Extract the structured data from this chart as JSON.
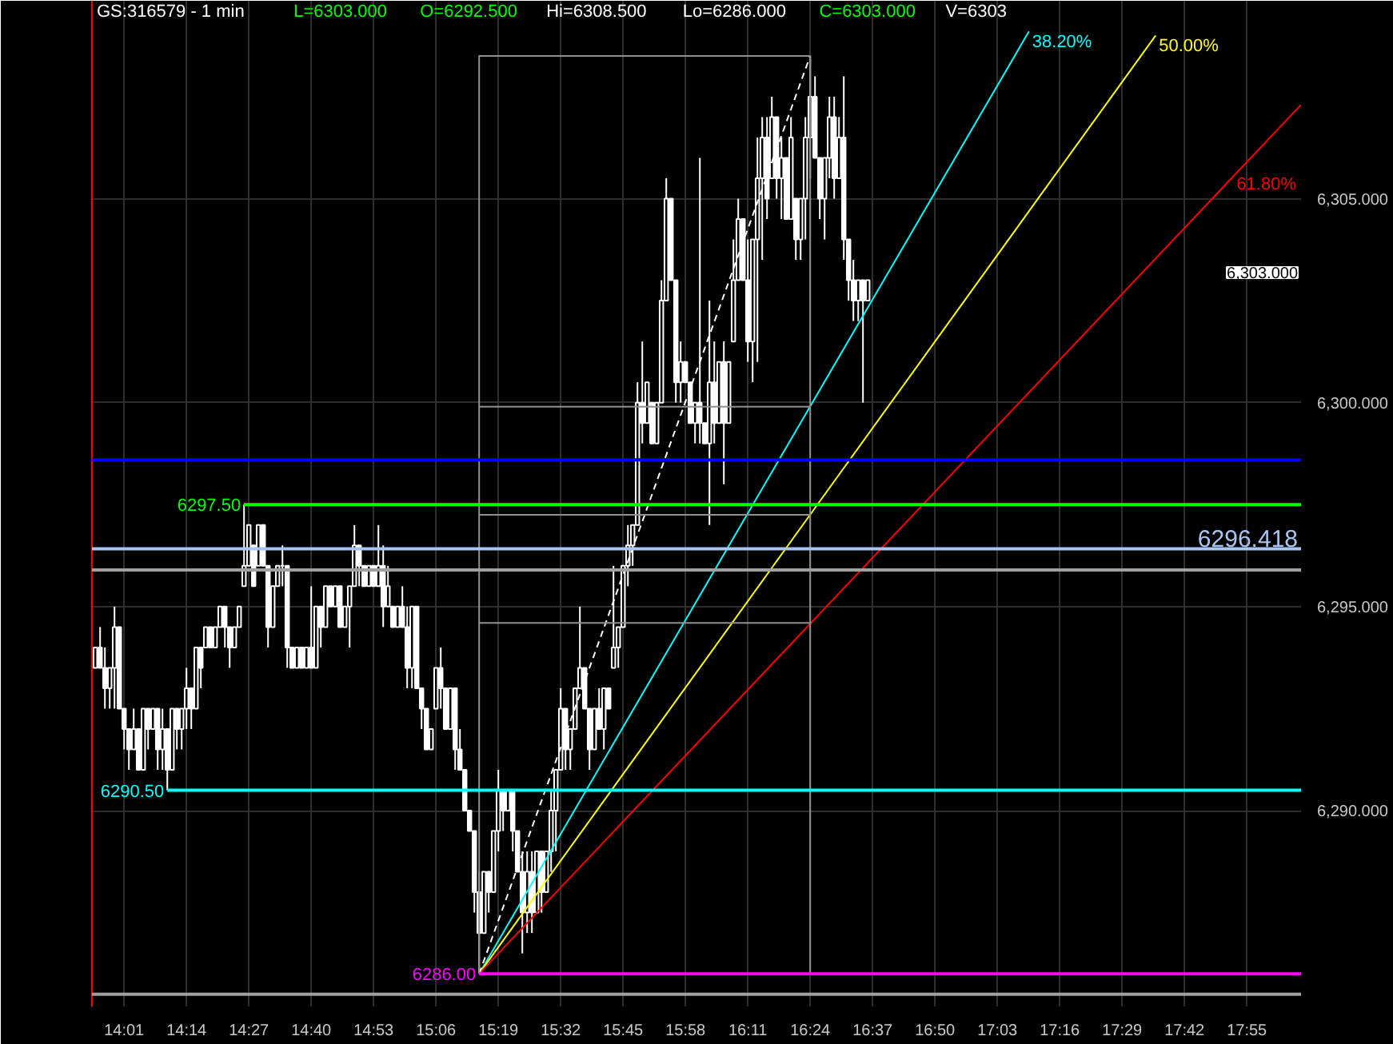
{
  "chart_data": {
    "type": "candlestick",
    "title": "GS:316579 - 1 min",
    "annotations": [
      "L=6303.000",
      "O=6292.500",
      "Hi=6308.500",
      "Lo=6286.000",
      "C=6303.000",
      "V=6303",
      "6,303.000"
    ],
    "color": "#ffffff",
    "x": [
      13.9167,
      13.9333,
      13.95,
      13.9667,
      13.9833,
      14,
      14.0167,
      14.0333,
      14.05,
      14.0667,
      14.0833,
      14.1,
      14.1167,
      14.1333,
      14.15,
      14.1667,
      14.1833,
      14.2,
      14.2167,
      14.2333,
      14.25,
      14.2667,
      14.2833,
      14.3,
      14.3167,
      14.3333,
      14.35,
      14.3667,
      14.3833,
      14.4,
      14.4167,
      14.4333,
      14.45,
      14.4667,
      14.4833,
      14.5,
      14.5167,
      14.5333,
      14.55,
      14.5667,
      14.5833,
      14.6,
      14.6167,
      14.6333,
      14.65,
      14.6667,
      14.6833,
      14.7,
      14.7167,
      14.7333,
      14.75,
      14.7667,
      14.7833,
      14.8,
      14.8167,
      14.8333,
      14.85,
      14.8667,
      14.8833,
      14.9,
      14.9167,
      14.9333,
      14.95,
      14.9667,
      14.9833,
      15,
      15.0167,
      15.0333,
      15.05,
      15.0667,
      15.0833,
      15.1,
      15.1167,
      15.1333,
      15.15,
      15.1667,
      15.1833,
      15.2,
      15.2167,
      15.2333,
      15.25,
      15.2667,
      15.2833,
      15.3,
      15.3167,
      15.3333,
      15.35,
      15.3667,
      15.3833,
      15.4,
      15.4167,
      15.4333,
      15.45,
      15.4667,
      15.4833,
      15.5,
      15.5167,
      15.5333,
      15.55,
      15.5667,
      15.5833,
      15.6,
      15.6167,
      15.6333,
      15.65,
      15.6667,
      15.6833,
      15.7,
      15.7167,
      15.7333,
      15.75,
      15.7667,
      15.7833,
      15.8,
      15.8167,
      15.8333,
      15.85,
      15.8667,
      15.8833,
      15.9,
      15.9167,
      15.9333,
      15.95,
      15.9667,
      15.9833,
      16,
      16.0167,
      16.0333,
      16.05,
      16.0667,
      16.0833,
      16.1,
      16.1167,
      16.1333,
      16.15,
      16.1667,
      16.1833,
      16.2,
      16.2167,
      16.2333,
      16.25,
      16.2667,
      16.2833,
      16.3,
      16.3167,
      16.3333,
      16.35,
      16.3667,
      16.3833,
      16.4,
      16.4167,
      16.4333,
      16.45,
      16.4667,
      16.4833,
      16.5,
      16.5167,
      16.5333,
      16.55,
      16.5667,
      16.5833,
      16.6
    ],
    "ohlc": [
      [
        6293.5,
        6294,
        6293.5,
        6294
      ],
      [
        6294,
        6294.5,
        6293.5,
        6293.5
      ],
      [
        6293.5,
        6294,
        6292.5,
        6293
      ],
      [
        6293,
        6293.5,
        6292.5,
        6293.5
      ],
      [
        6293.5,
        6295,
        6292.5,
        6294.5
      ],
      [
        6294.5,
        6294.5,
        6292.5,
        6292.5
      ],
      [
        6292.5,
        6292.5,
        6291.5,
        6292
      ],
      [
        6292,
        6292,
        6291,
        6291.5
      ],
      [
        6291.5,
        6292.5,
        6291.5,
        6292
      ],
      [
        6292,
        6292,
        6291,
        6291
      ],
      [
        6291,
        6292.5,
        6291,
        6292.5
      ],
      [
        6292.5,
        6292.5,
        6291.5,
        6292
      ],
      [
        6292,
        6292.5,
        6292,
        6292.5
      ],
      [
        6292.5,
        6292.5,
        6291,
        6291.5
      ],
      [
        6291.5,
        6292.5,
        6291,
        6292
      ],
      [
        6292,
        6292,
        6290.5,
        6291
      ],
      [
        6291,
        6292.5,
        6291,
        6292.5
      ],
      [
        6292.5,
        6292.5,
        6291.5,
        6292
      ],
      [
        6292,
        6292.5,
        6291.5,
        6292.5
      ],
      [
        6292.5,
        6293.5,
        6292,
        6293
      ],
      [
        6293,
        6293,
        6292,
        6292.5
      ],
      [
        6292.5,
        6294,
        6292.5,
        6294
      ],
      [
        6294,
        6294,
        6293,
        6293.5
      ],
      [
        6294,
        6294.5,
        6294,
        6294.5
      ],
      [
        6294.5,
        6294.5,
        6294,
        6294
      ],
      [
        6294,
        6294.5,
        6294,
        6294.5
      ],
      [
        6294.5,
        6295,
        6294.5,
        6295
      ],
      [
        6295,
        6295,
        6294,
        6294.5
      ],
      [
        6294.5,
        6294.5,
        6293.5,
        6294
      ],
      [
        6294,
        6294.5,
        6294,
        6294.5
      ],
      [
        6294.5,
        6295,
        6294.5,
        6295
      ],
      [
        6295.5,
        6297.5,
        6295.5,
        6296
      ],
      [
        6296,
        6297,
        6296,
        6297
      ],
      [
        6296.5,
        6296.5,
        6295.5,
        6295.5
      ],
      [
        6296,
        6297,
        6296,
        6297
      ],
      [
        6297,
        6297,
        6296,
        6296
      ],
      [
        6296,
        6296,
        6294,
        6294.5
      ],
      [
        6294.5,
        6295.5,
        6294.5,
        6295.5
      ],
      [
        6295.5,
        6296,
        6295.5,
        6296
      ],
      [
        6296,
        6296.5,
        6295.5,
        6296
      ],
      [
        6296,
        6296,
        6293.5,
        6294
      ],
      [
        6294,
        6294,
        6293.5,
        6293.5
      ],
      [
        6293.5,
        6294,
        6293.5,
        6294
      ],
      [
        6294,
        6294,
        6293.5,
        6293.5
      ],
      [
        6293.5,
        6294,
        6293.5,
        6294
      ],
      [
        6294,
        6295.5,
        6293.5,
        6293.5
      ],
      [
        6293.5,
        6295,
        6293.5,
        6295
      ],
      [
        6295,
        6295,
        6294,
        6294.5
      ],
      [
        6294.5,
        6295.5,
        6294.5,
        6295.5
      ],
      [
        6295.5,
        6295.5,
        6295,
        6295
      ],
      [
        6295,
        6295.5,
        6295,
        6295.5
      ],
      [
        6295.5,
        6295.5,
        6294.5,
        6294.5
      ],
      [
        6294.5,
        6295,
        6294.5,
        6295
      ],
      [
        6295,
        6295.5,
        6294,
        6295.5
      ],
      [
        6295.5,
        6297,
        6295.5,
        6296.5
      ],
      [
        6296.5,
        6296.5,
        6295.5,
        6296
      ],
      [
        6296,
        6296,
        6295.5,
        6295.5
      ],
      [
        6295.5,
        6296,
        6295.5,
        6296
      ],
      [
        6296,
        6296,
        6295.5,
        6295.5
      ],
      [
        6295.5,
        6297,
        6295.5,
        6296
      ],
      [
        6296,
        6296.5,
        6294.5,
        6295
      ],
      [
        6295,
        6296,
        6295,
        6295.5
      ],
      [
        6295,
        6295,
        6294.5,
        6294.5
      ],
      [
        6294.5,
        6295,
        6294.5,
        6295
      ],
      [
        6295,
        6295.5,
        6294.5,
        6294.5
      ],
      [
        6294.5,
        6295,
        6293,
        6293.5
      ],
      [
        6293.5,
        6295,
        6293,
        6295
      ],
      [
        6295,
        6295,
        6293,
        6293
      ],
      [
        6293,
        6293,
        6292,
        6292.5
      ],
      [
        6292.5,
        6292.5,
        6291.5,
        6291.5
      ],
      [
        6291.5,
        6292,
        6291.5,
        6292
      ],
      [
        6292.5,
        6293.5,
        6292.5,
        6293.5
      ],
      [
        6293.5,
        6294,
        6292.5,
        6293
      ],
      [
        6293,
        6293,
        6292,
        6292
      ],
      [
        6292,
        6293,
        6292,
        6293
      ],
      [
        6293,
        6293,
        6291,
        6291.5
      ],
      [
        6291.5,
        6292,
        6291,
        6291
      ],
      [
        6291,
        6291,
        6290,
        6290
      ],
      [
        6290,
        6290,
        6289.5,
        6289.5
      ],
      [
        6289.5,
        6289.5,
        6287.5,
        6288
      ],
      [
        6288,
        6288.5,
        6286,
        6287
      ],
      [
        6287,
        6288.5,
        6287,
        6288.5
      ],
      [
        6288.5,
        6288.5,
        6287.5,
        6288
      ],
      [
        6288,
        6289.5,
        6288,
        6289.5
      ],
      [
        6289.5,
        6291,
        6289,
        6290.5
      ],
      [
        6290.5,
        6290.5,
        6289.5,
        6290
      ],
      [
        6290,
        6290.5,
        6290,
        6290.5
      ],
      [
        6290.5,
        6290.5,
        6289,
        6289.5
      ],
      [
        6289.5,
        6289.5,
        6288.5,
        6288.5
      ],
      [
        6288.5,
        6289,
        6286.5,
        6287.5
      ],
      [
        6287.5,
        6289,
        6287,
        6288.5
      ],
      [
        6288.5,
        6289,
        6287,
        6287.5
      ],
      [
        6287.5,
        6289,
        6287.5,
        6289
      ],
      [
        6289,
        6289,
        6287.5,
        6288
      ],
      [
        6288,
        6289,
        6288,
        6289
      ],
      [
        6289,
        6290.5,
        6288.5,
        6290
      ],
      [
        6290,
        6291,
        6289,
        6291
      ],
      [
        6291,
        6293,
        6291,
        6292.5
      ],
      [
        6292.5,
        6292.5,
        6291,
        6291.5
      ],
      [
        6291.5,
        6292,
        6291,
        6292
      ],
      [
        6292,
        6293,
        6292,
        6293
      ],
      [
        6293,
        6295,
        6293,
        6293.5
      ],
      [
        6293.5,
        6293.5,
        6292.5,
        6292.5
      ],
      [
        6292.5,
        6292.5,
        6291,
        6291.5
      ],
      [
        6291.5,
        6292.5,
        6291.5,
        6292.5
      ],
      [
        6292.5,
        6293,
        6292,
        6292
      ],
      [
        6292,
        6293,
        6291.5,
        6293
      ],
      [
        6293,
        6293,
        6292.5,
        6292.5
      ],
      [
        6293.5,
        6296,
        6293.5,
        6294
      ],
      [
        6294,
        6294.5,
        6293.5,
        6294.5
      ],
      [
        6294.5,
        6296,
        6294.5,
        6296
      ],
      [
        6296,
        6297,
        6295.5,
        6296.5
      ],
      [
        6296.5,
        6297,
        6296,
        6297
      ],
      [
        6297,
        6300.5,
        6297,
        6300
      ],
      [
        6300,
        6301.5,
        6299,
        6299.5
      ],
      [
        6299.5,
        6300.5,
        6299.5,
        6300.5
      ],
      [
        6300,
        6300,
        6299,
        6299
      ],
      [
        6299,
        6300,
        6299,
        6300
      ],
      [
        6300,
        6303,
        6300,
        6302.5
      ],
      [
        6302.5,
        6305.5,
        6302.5,
        6305
      ],
      [
        6305,
        6305,
        6303,
        6303
      ],
      [
        6303,
        6303,
        6300,
        6300.5
      ],
      [
        6300.5,
        6301.5,
        6300,
        6301
      ],
      [
        6301,
        6301,
        6300.5,
        6300.5
      ],
      [
        6300.5,
        6300.5,
        6299.5,
        6299.5
      ],
      [
        6299.5,
        6300,
        6299,
        6300
      ],
      [
        6300,
        6306,
        6299,
        6299.5
      ],
      [
        6299.5,
        6299.5,
        6299,
        6299
      ],
      [
        6299,
        6302.5,
        6297,
        6300.5
      ],
      [
        6300.5,
        6301.5,
        6299,
        6299.5
      ],
      [
        6299.5,
        6301,
        6299.5,
        6301
      ],
      [
        6301,
        6301.5,
        6298,
        6299.5
      ],
      [
        6299.5,
        6301,
        6299.5,
        6301
      ],
      [
        6301.5,
        6304,
        6301.5,
        6303
      ],
      [
        6303,
        6305,
        6303,
        6304.5
      ],
      [
        6304.5,
        6304.5,
        6303,
        6303
      ],
      [
        6303,
        6304,
        6301,
        6301.5
      ],
      [
        6301.5,
        6304,
        6300.5,
        6304
      ],
      [
        6304,
        6306.5,
        6301,
        6305.5
      ],
      [
        6305.5,
        6307,
        6303.5,
        6306.5
      ],
      [
        6306.5,
        6307,
        6304.5,
        6305
      ],
      [
        6305.5,
        6307.5,
        6305.5,
        6307
      ],
      [
        6307,
        6307,
        6305,
        6305.5
      ],
      [
        6305.5,
        6306.5,
        6304.5,
        6306
      ],
      [
        6306,
        6306,
        6304.5,
        6304.5
      ],
      [
        6304.5,
        6307,
        6304.5,
        6306.5
      ],
      [
        6305,
        6305,
        6303.5,
        6304
      ],
      [
        6304,
        6305,
        6303.5,
        6305
      ],
      [
        6305,
        6307,
        6304,
        6306.5
      ],
      [
        6306.5,
        6308.5,
        6305.5,
        6307.5
      ],
      [
        6307.5,
        6308,
        6306,
        6306
      ],
      [
        6306,
        6306,
        6304.5,
        6305
      ],
      [
        6305,
        6306,
        6304,
        6306
      ],
      [
        6306,
        6307.5,
        6305.5,
        6307
      ],
      [
        6307,
        6307.5,
        6305,
        6305.5
      ],
      [
        6305.5,
        6307,
        6305.5,
        6306.5
      ],
      [
        6306.5,
        6308,
        6303.5,
        6304
      ],
      [
        6304,
        6304,
        6302.5,
        6303
      ],
      [
        6303,
        6303.5,
        6302,
        6302.5
      ],
      [
        6302.5,
        6303,
        6302,
        6303
      ],
      [
        6303,
        6303,
        6300,
        6302.5
      ],
      [
        6302.5,
        6303,
        6302.5,
        6303
      ]
    ],
    "series": [
      {
        "type": "line",
        "name": "38.20%",
        "color": "#00ffff",
        "x": [
          15.25,
          17.16
        ],
        "values": [
          6286,
          6309.1
        ]
      },
      {
        "type": "line",
        "name": "50.00%",
        "color": "#ffff00",
        "x": [
          15.25,
          17.6
        ],
        "values": [
          6286,
          6309.0
        ]
      },
      {
        "type": "line",
        "name": "61.80%",
        "color": "#ff0000",
        "x": [
          15.25,
          18.105
        ],
        "values": [
          6286,
          6307.3
        ]
      },
      {
        "type": "line",
        "color": "#ffffff",
        "line_style": "dashed",
        "x": [
          15.25,
          16.4
        ],
        "values": [
          6286,
          6308.5
        ]
      },
      {
        "type": "line",
        "color": "#909090",
        "x": [
          15.25,
          15.25,
          16.4,
          16.4
        ],
        "values": [
          6286,
          6308.5,
          6308.5,
          6286
        ]
      },
      {
        "type": "line",
        "color": "#909090",
        "x": [
          15.25,
          16.4
        ],
        "values": [
          6299.9,
          6299.9
        ]
      },
      {
        "type": "line",
        "color": "#909090",
        "x": [
          15.25,
          16.4
        ],
        "values": [
          6297.25,
          6297.25
        ]
      },
      {
        "type": "line",
        "color": "#909090",
        "x": [
          15.25,
          16.4
        ],
        "values": [
          6294.6,
          6294.6
        ]
      },
      {
        "type": "line",
        "name": "6297.50",
        "color": "#00ff00",
        "x": [
          14.4333,
          18.105
        ],
        "values": [
          6297.5,
          6297.5
        ]
      },
      {
        "type": "line",
        "name": "6290.50",
        "color": "#00ffff",
        "x": [
          14.1667,
          18.105
        ],
        "values": [
          6290.5,
          6290.5
        ]
      },
      {
        "type": "line",
        "name": "6286.00",
        "color": "#ff00ff",
        "x": [
          15.25,
          18.105
        ],
        "values": [
          6286,
          6286
        ]
      }
    ],
    "ref_lines": [
      {
        "axis": "y",
        "value": 6298.6,
        "color": "#0000ff"
      },
      {
        "axis": "y",
        "value": 6296.418,
        "label": "6296.418",
        "color": "#a8c4f0"
      },
      {
        "axis": "y",
        "value": 6295.9,
        "color": "#a0a0a0"
      },
      {
        "axis": "y",
        "value": 6285.5,
        "color": "#a0a0a0"
      }
    ],
    "xlim": [
      13.905,
      18.105
    ],
    "ylim": [
      6285.2,
      6309.85
    ],
    "xticks": [
      {
        "value": 14.0167,
        "label": "14:01"
      },
      {
        "value": 14.2333,
        "label": "14:14"
      },
      {
        "value": 14.45,
        "label": "14:27"
      },
      {
        "value": 14.6667,
        "label": "14:40"
      },
      {
        "value": 14.8833,
        "label": "14:53"
      },
      {
        "value": 15.1,
        "label": "15:06"
      },
      {
        "value": 15.3167,
        "label": "15:19"
      },
      {
        "value": 15.5333,
        "label": "15:32"
      },
      {
        "value": 15.75,
        "label": "15:45"
      },
      {
        "value": 15.9667,
        "label": "15:58"
      },
      {
        "value": 16.1833,
        "label": "16:11"
      },
      {
        "value": 16.4,
        "label": "16:24"
      },
      {
        "value": 16.6167,
        "label": "16:37"
      },
      {
        "value": 16.8333,
        "label": "16:50"
      },
      {
        "value": 17.05,
        "label": "17:03"
      },
      {
        "value": 17.2667,
        "label": "17:16"
      },
      {
        "value": 17.4833,
        "label": "17:29"
      },
      {
        "value": 17.7,
        "label": "17:42"
      },
      {
        "value": 17.9167,
        "label": "17:55"
      }
    ],
    "yticks": [
      {
        "value": 6290,
        "label": "6,290.000"
      },
      {
        "value": 6295,
        "label": "6,295.000"
      },
      {
        "value": 6300,
        "label": "6,300.000"
      },
      {
        "value": 6305,
        "label": "6,305.000"
      }
    ],
    "grid": true
  }
}
